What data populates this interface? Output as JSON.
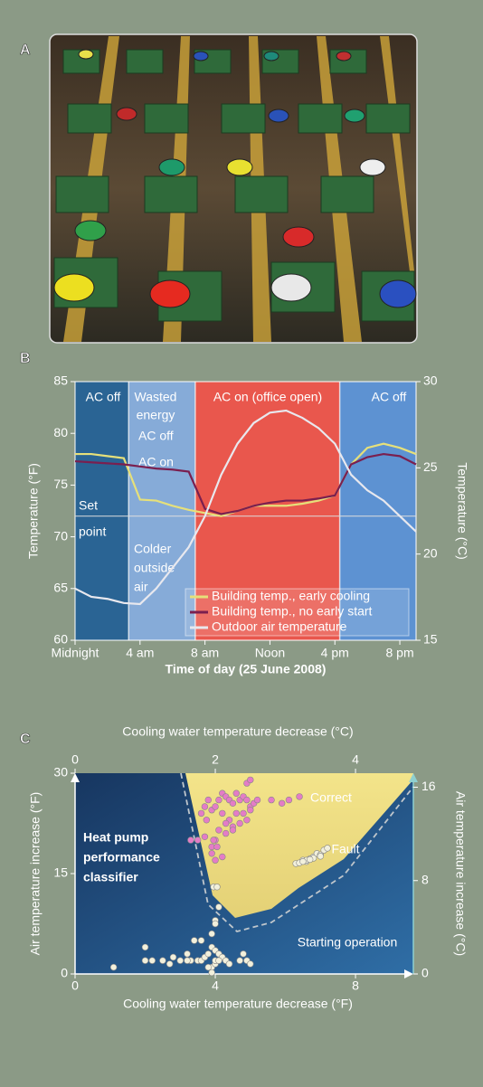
{
  "photo": {
    "label": "A"
  },
  "chart_data": [
    {
      "type": "line",
      "label": "B",
      "xlabel": "Time of day (25 June 2008)",
      "ylabel": "Temperature (°F)",
      "y2label": "Temperature (°C)",
      "xlim": [
        0,
        21
      ],
      "xticks": [
        {
          "value": 0,
          "label": "Midnight"
        },
        {
          "value": 4,
          "label": "4 am"
        },
        {
          "value": 8,
          "label": "8 am"
        },
        {
          "value": 12,
          "label": "Noon"
        },
        {
          "value": 16,
          "label": "4 pm"
        },
        {
          "value": 20,
          "label": "8 pm"
        }
      ],
      "ylim": [
        60,
        85
      ],
      "yticks": [
        60,
        65,
        70,
        75,
        80,
        85
      ],
      "y2lim": [
        15,
        30
      ],
      "y2ticks": [
        15,
        20,
        25,
        30
      ],
      "regions": [
        {
          "label": [
            "AC off"
          ],
          "start": 0,
          "end": 3.3,
          "color": "#2a6494"
        },
        {
          "label": [
            "Wasted",
            "energy"
          ],
          "start": 3.3,
          "end": 7.4,
          "color": "#86abd8"
        },
        {
          "label": [
            "AC on (office open)"
          ],
          "start": 7.4,
          "end": 16.3,
          "color": "#e9574d"
        },
        {
          "label": [
            "AC off"
          ],
          "start": 16.3,
          "end": 21,
          "color": "#5d92d2"
        }
      ],
      "setpoint": {
        "value": 72,
        "label": [
          "Set",
          "point"
        ]
      },
      "annotations": [
        [
          "AC off"
        ],
        [
          "AC on"
        ],
        [
          "Colder",
          "outside",
          "air"
        ]
      ],
      "legend": "lower right",
      "x": [
        0,
        1,
        2,
        3,
        4,
        5,
        6,
        7,
        8,
        9,
        10,
        11,
        12,
        13,
        14,
        15,
        16,
        17,
        18,
        19,
        20,
        21
      ],
      "series": [
        {
          "name": "Building temp., early cooling",
          "color": "#e6e07a",
          "values": [
            78,
            78,
            77.8,
            77.6,
            73.6,
            73.5,
            73,
            72.6,
            72.3,
            72,
            72.5,
            73,
            73,
            73,
            73.2,
            73.5,
            74,
            77,
            78.6,
            79,
            78.6,
            78
          ]
        },
        {
          "name": "Building temp., no early start",
          "color": "#7a1f4f",
          "values": [
            77.3,
            77.2,
            77.1,
            77,
            76.8,
            76.6,
            76.5,
            76.3,
            72.7,
            72.2,
            72.5,
            73,
            73.3,
            73.5,
            73.5,
            73.7,
            74,
            77,
            77.7,
            78,
            77.8,
            77
          ]
        },
        {
          "name": "Outdoor air temperature",
          "color": "#e8e8ee",
          "values": [
            65,
            64.2,
            64,
            63.6,
            63.5,
            65,
            67,
            69,
            72,
            76,
            79,
            81,
            82,
            82.2,
            81.5,
            80.5,
            79,
            76,
            74.5,
            73.5,
            72,
            70.5
          ]
        }
      ]
    },
    {
      "type": "scatter",
      "label": "C",
      "title": [
        "Heat pump",
        "performance",
        "classifier"
      ],
      "xlabel": "Cooling water temperature decrease  (°F)",
      "x2label": "Cooling water temperature decrease  (°C)",
      "ylabel": "Air temperature increase (°F)",
      "y2label": "Air temperature increase (°C)",
      "xlim": [
        0,
        9.65
      ],
      "xticks": [
        0,
        4,
        8
      ],
      "x2lim": [
        0,
        4.825
      ],
      "x2ticks": [
        0,
        2,
        4
      ],
      "ylim": [
        0,
        30
      ],
      "yticks": [
        0,
        15,
        30
      ],
      "y2lim": [
        0,
        17.2
      ],
      "y2ticks": [
        0,
        8,
        16
      ],
      "series": [
        {
          "name": "Correct",
          "color": "#e47cc6",
          "x": [
            3.6,
            3.7,
            3.75,
            3.8,
            3.9,
            4.0,
            4.1,
            4.2,
            4.3,
            4.4,
            4.5,
            4.6,
            4.7,
            4.8,
            4.9,
            5.0,
            5.1,
            5.2,
            4.2,
            4.4,
            4.6,
            4.8,
            5.0,
            4.3,
            4.5,
            4.7,
            4.9,
            4.1,
            4.3,
            4.5,
            4.0,
            3.9,
            3.9,
            4.0,
            3.3,
            3.5,
            3.7,
            3.95,
            4.05,
            4.2,
            4.9,
            5.0,
            6.1,
            6.4,
            5.6,
            5.9
          ],
          "y": [
            24,
            25,
            23,
            26,
            24.5,
            25,
            26,
            27,
            26.5,
            26,
            25.5,
            27,
            26,
            26.5,
            26,
            25,
            25.5,
            26,
            24,
            23,
            24,
            24,
            24.5,
            22.5,
            22,
            22.5,
            23,
            21.5,
            21,
            21.5,
            20,
            19,
            18,
            17,
            20,
            20,
            20.5,
            20,
            19,
            17.5,
            28.5,
            29,
            26,
            26.5,
            26,
            25.5
          ]
        },
        {
          "name": "Fault",
          "color": "#f2f0dc",
          "x": [
            6.3,
            6.5,
            6.6,
            6.7,
            6.8,
            6.9,
            7.0,
            7.1,
            7.2,
            6.4,
            6.6,
            6.8,
            7.0,
            6.5,
            6.7
          ],
          "y": [
            16.5,
            17,
            16.8,
            17.2,
            17.5,
            18,
            17.8,
            18.5,
            18.8,
            16.6,
            17,
            17.3,
            17.6,
            16.8,
            17.1
          ]
        },
        {
          "name": "Starting operation",
          "color": "#f2f0dc",
          "x": [
            1.1,
            2.0,
            2.2,
            2.5,
            2.7,
            2.8,
            3.0,
            3.2,
            3.3,
            3.4,
            3.5,
            3.6,
            3.7,
            3.8,
            3.9,
            4.0,
            4.1,
            4.2,
            4.3,
            4.4,
            3.9,
            4.0,
            4.1,
            4.0,
            3.95,
            4.05,
            3.6,
            3.2,
            3.9,
            4.0,
            2.0,
            4.7,
            4.9,
            5.0,
            4.8,
            3.8,
            3.9,
            4.0,
            4.1
          ],
          "y": [
            1,
            4,
            2,
            2,
            1.5,
            2.5,
            2,
            3,
            2,
            5,
            2,
            2,
            2.5,
            3,
            4,
            3.5,
            3,
            2.5,
            2,
            1.5,
            6,
            8,
            10,
            7.5,
            13,
            13,
            5,
            2,
            1,
            1.5,
            2,
            2,
            2,
            1.5,
            3,
            1,
            0.2,
            2,
            2
          ]
        }
      ]
    }
  ]
}
